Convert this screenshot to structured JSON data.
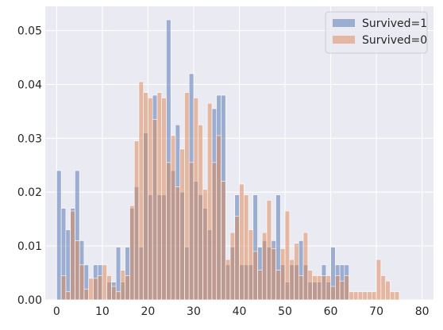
{
  "chart_data": {
    "type": "bar",
    "chart_type_note": "overlaid histograms",
    "title": "",
    "xlabel": "",
    "ylabel": "",
    "xlim": [
      -2.5,
      82.5
    ],
    "ylim": [
      0,
      0.0545
    ],
    "x_ticks": [
      "0",
      "10",
      "20",
      "30",
      "40",
      "50",
      "60",
      "70",
      "80"
    ],
    "y_ticks": [
      "0.00",
      "0.01",
      "0.02",
      "0.03",
      "0.04",
      "0.05"
    ],
    "grid": true,
    "background": "#eaeaf2",
    "legend_position": "top-right",
    "bin_width": 1,
    "series": [
      {
        "name": "Survived=1",
        "color": "#4c72b0",
        "opacity": 0.5,
        "x": [
          0,
          1,
          2,
          3,
          4,
          5,
          6,
          8,
          9,
          11,
          12,
          13,
          14,
          15,
          16,
          17,
          18,
          19,
          20,
          21,
          22,
          23,
          24,
          25,
          26,
          27,
          28,
          29,
          30,
          31,
          32,
          33,
          34,
          35,
          36,
          37,
          38,
          39,
          40,
          41,
          42,
          43,
          44,
          45,
          46,
          47,
          48,
          49,
          50,
          51,
          52,
          53,
          54,
          55,
          56,
          57,
          58,
          59,
          60,
          61,
          62,
          63
        ],
        "values": [
          0.024,
          0.017,
          0.013,
          0.017,
          0.024,
          0.011,
          0.0065,
          0.0065,
          0.0065,
          0.0033,
          0.0033,
          0.0098,
          0.0033,
          0.0098,
          0.017,
          0.021,
          0.0098,
          0.031,
          0.0195,
          0.038,
          0.0195,
          0.0195,
          0.052,
          0.024,
          0.0325,
          0.02,
          0.0098,
          0.042,
          0.022,
          0.0195,
          0.017,
          0.013,
          0.0355,
          0.038,
          0.038,
          0.0065,
          0.0098,
          0.0195,
          0.0065,
          0.0065,
          0.0065,
          0.0195,
          0.0098,
          0.011,
          0.0098,
          0.011,
          0.0195,
          0.0065,
          0.0033,
          0.0065,
          0.0065,
          0.011,
          0.0065,
          0.0033,
          0.0033,
          0.0033,
          0.0065,
          0.0033,
          0.0098,
          0.0065,
          0.0065,
          0.0065
        ]
      },
      {
        "name": "Survived=0",
        "color": "#dd8452",
        "opacity": 0.5,
        "x": [
          1,
          2,
          3,
          4,
          5,
          6,
          7,
          8,
          9,
          10,
          11,
          12,
          13,
          14,
          15,
          16,
          17,
          18,
          19,
          20,
          21,
          22,
          23,
          24,
          25,
          26,
          27,
          28,
          29,
          30,
          31,
          32,
          33,
          34,
          35,
          36,
          37,
          38,
          39,
          40,
          41,
          42,
          43,
          44,
          45,
          46,
          47,
          48,
          49,
          50,
          51,
          52,
          53,
          54,
          55,
          56,
          57,
          58,
          59,
          60,
          61,
          62,
          63,
          64,
          65,
          66,
          67,
          68,
          69,
          70,
          71,
          72,
          73,
          74
        ],
        "values": [
          0.0045,
          0.0015,
          0.0165,
          0.011,
          0.0065,
          0.002,
          0.004,
          0.004,
          0.0045,
          0.0065,
          0.0045,
          0.0025,
          0.0015,
          0.0055,
          0.0045,
          0.0175,
          0.0295,
          0.0405,
          0.0385,
          0.0375,
          0.0335,
          0.0385,
          0.0375,
          0.0255,
          0.0305,
          0.021,
          0.028,
          0.0385,
          0.0255,
          0.0375,
          0.0325,
          0.0205,
          0.0365,
          0.0255,
          0.0305,
          0.022,
          0.0075,
          0.0125,
          0.0155,
          0.0215,
          0.0195,
          0.013,
          0.009,
          0.0055,
          0.0125,
          0.0185,
          0.0095,
          0.0055,
          0.0095,
          0.0165,
          0.0075,
          0.0105,
          0.0045,
          0.0125,
          0.0055,
          0.0045,
          0.0045,
          0.0045,
          0.0045,
          0.0025,
          0.0045,
          0.0035,
          0.0045,
          0.0015,
          0.0015,
          0.0015,
          0.0015,
          0.0015,
          0.0015,
          0.0075,
          0.0045,
          0.0035,
          0.0015,
          0.0015
        ]
      }
    ]
  }
}
